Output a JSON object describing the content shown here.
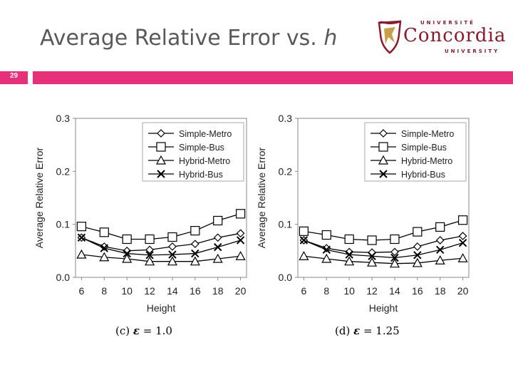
{
  "slide": {
    "title_main": "Average Relative Error vs. ",
    "title_var": "h",
    "page_number": "29"
  },
  "logo": {
    "top": "UNIVERSITÉ",
    "name": "Concordia",
    "bottom": "UNIVERSITY",
    "color": "#8b1a2b"
  },
  "colors": {
    "accent": "#e8307a",
    "title": "#595959",
    "line": "#000000"
  },
  "captions": [
    {
      "prefix": "(c) ",
      "symbol": "ε",
      "rest": " = 1.0"
    },
    {
      "prefix": "(d) ",
      "symbol": "ε",
      "rest": " = 1.25"
    }
  ],
  "chart_data": [
    {
      "type": "line",
      "xlabel": "Height",
      "ylabel": "Average Relative Error",
      "x": [
        6,
        8,
        10,
        12,
        14,
        16,
        18,
        20
      ],
      "ylim": [
        0,
        0.3
      ],
      "yticks": [
        "0.0",
        "0.1",
        "0.2",
        "0.3"
      ],
      "legend": "top-right",
      "series": [
        {
          "name": "Simple-Metro",
          "marker": "diamond",
          "values": [
            0.075,
            0.058,
            0.05,
            0.052,
            0.058,
            0.063,
            0.075,
            0.083
          ]
        },
        {
          "name": "Simple-Bus",
          "marker": "square",
          "values": [
            0.096,
            0.085,
            0.072,
            0.072,
            0.076,
            0.088,
            0.107,
            0.12
          ]
        },
        {
          "name": "Hybrid-Metro",
          "marker": "triangle",
          "values": [
            0.043,
            0.038,
            0.035,
            0.03,
            0.03,
            0.03,
            0.035,
            0.04
          ]
        },
        {
          "name": "Hybrid-Bus",
          "marker": "x",
          "values": [
            0.075,
            0.055,
            0.045,
            0.042,
            0.043,
            0.045,
            0.057,
            0.07
          ]
        }
      ]
    },
    {
      "type": "line",
      "xlabel": "Height",
      "ylabel": "Average Relative Error",
      "x": [
        6,
        8,
        10,
        12,
        14,
        16,
        18,
        20
      ],
      "ylim": [
        0,
        0.3
      ],
      "yticks": [
        "0.0",
        "0.1",
        "0.2",
        "0.3"
      ],
      "legend": "top-right",
      "series": [
        {
          "name": "Simple-Metro",
          "marker": "diamond",
          "values": [
            0.07,
            0.055,
            0.048,
            0.047,
            0.048,
            0.058,
            0.07,
            0.078
          ]
        },
        {
          "name": "Simple-Bus",
          "marker": "square",
          "values": [
            0.087,
            0.08,
            0.072,
            0.07,
            0.072,
            0.086,
            0.095,
            0.108
          ]
        },
        {
          "name": "Hybrid-Metro",
          "marker": "triangle",
          "values": [
            0.04,
            0.035,
            0.03,
            0.028,
            0.026,
            0.027,
            0.032,
            0.036
          ]
        },
        {
          "name": "Hybrid-Bus",
          "marker": "x",
          "values": [
            0.07,
            0.052,
            0.043,
            0.04,
            0.037,
            0.042,
            0.052,
            0.065
          ]
        }
      ]
    }
  ]
}
